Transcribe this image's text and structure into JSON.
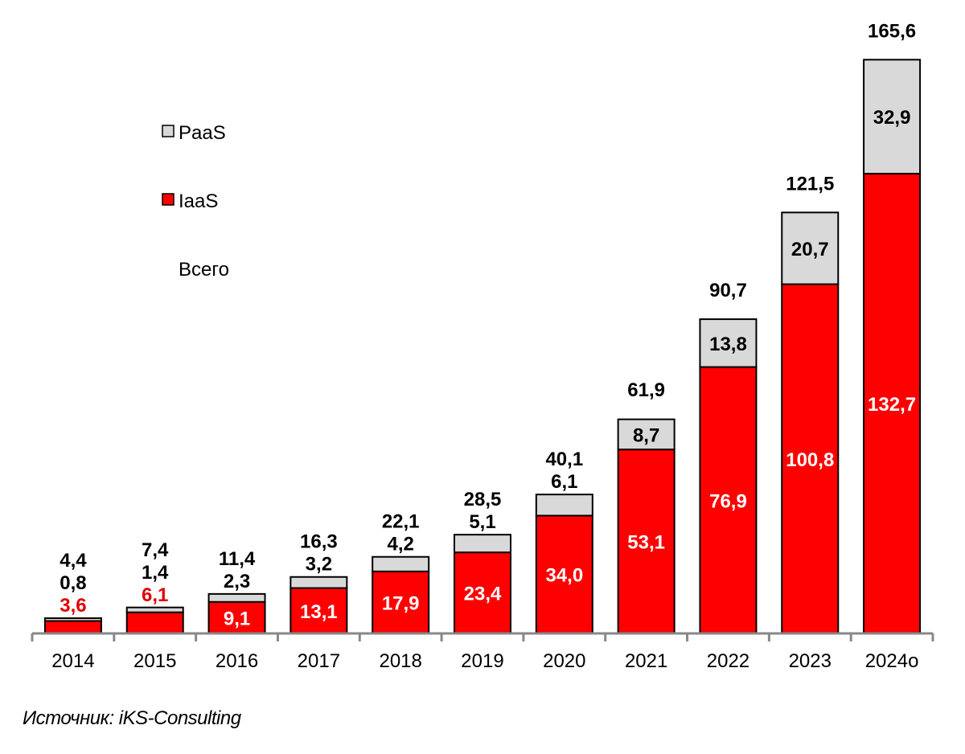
{
  "chart_data": {
    "type": "bar",
    "stacked": true,
    "categories": [
      "2014",
      "2015",
      "2016",
      "2017",
      "2018",
      "2019",
      "2020",
      "2021",
      "2022",
      "2023",
      "2024о"
    ],
    "series": [
      {
        "name": "IaaS",
        "color": "#ff0000",
        "values": [
          3.6,
          6.1,
          9.1,
          13.1,
          17.9,
          23.4,
          34.0,
          53.1,
          76.9,
          100.8,
          132.7
        ],
        "labels": [
          "3,6",
          "6,1",
          "9,1",
          "13,1",
          "17,9",
          "23,4",
          "34,0",
          "53,1",
          "76,9",
          "100,8",
          "132,7"
        ]
      },
      {
        "name": "PaaS",
        "color": "#d9d9d9",
        "values": [
          0.8,
          1.4,
          2.3,
          3.2,
          4.2,
          5.1,
          6.1,
          8.7,
          13.8,
          20.7,
          32.9
        ],
        "labels": [
          "0,8",
          "1,4",
          "2,3",
          "3,2",
          "4,2",
          "5,1",
          "6,1",
          "8,7",
          "13,8",
          "20,7",
          "32,9"
        ]
      }
    ],
    "totals": {
      "name": "Всего",
      "values": [
        4.4,
        7.4,
        11.4,
        16.3,
        22.1,
        28.5,
        40.1,
        61.9,
        90.7,
        121.5,
        165.6
      ],
      "labels": [
        "4,4",
        "7,4",
        "11,4",
        "16,3",
        "22,1",
        "28,5",
        "40,1",
        "61,9",
        "90,7",
        "121,5",
        "165,6"
      ]
    },
    "legend": [
      "PaaS",
      "IaaS",
      "Всего"
    ],
    "legend_placement": "top-left",
    "ylim": [
      0,
      170
    ],
    "grid": false,
    "xlabel": "",
    "ylabel": "",
    "title": ""
  },
  "source": "Источник: iKS-Consulting"
}
